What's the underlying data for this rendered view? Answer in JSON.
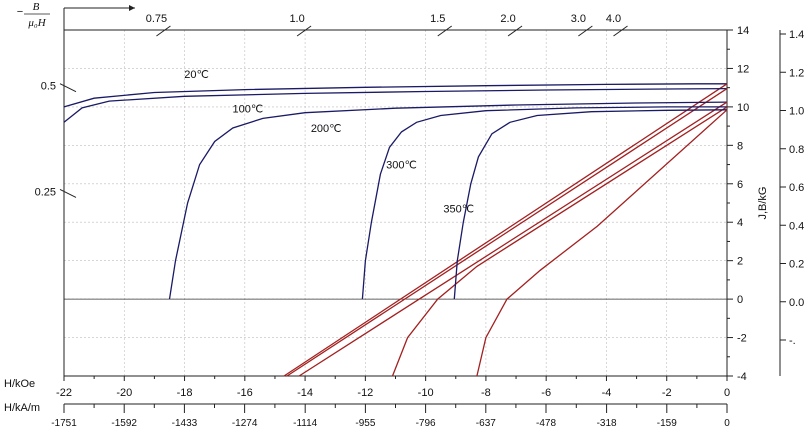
{
  "chart_data": {
    "type": "line",
    "x_axis_label": "H/kOe",
    "x_axis_ticks": [
      "-22",
      "-20",
      "-18",
      "-16",
      "-14",
      "-12",
      "-10",
      "-8",
      "-6",
      "-4",
      "-2",
      "0"
    ],
    "x_range": [
      -22,
      0
    ],
    "x2_axis_label": "H/kA/m",
    "x2_axis_ticks": [
      "-1751",
      "-1592",
      "-1433",
      "-1274",
      "-1114",
      "-955",
      "-796",
      "-637",
      "-478",
      "-318",
      "-159",
      "0"
    ],
    "y_axis_label": "J,B/kG",
    "y_axis_ticks": [
      "-4",
      "-2",
      "0",
      "2",
      "4",
      "6",
      "8",
      "10",
      "12",
      "14"
    ],
    "y_range": [
      -4,
      14
    ],
    "right_axis_ticks": [
      "1.4",
      "1.2",
      "1.0",
      "0.8",
      "0.6",
      "0.4",
      "0.2",
      "0.0",
      "-."
    ],
    "permeance_label": "−B/(μ0H)",
    "permeance_ticks": [
      {
        "label": "0.75",
        "slope": 0.75
      },
      {
        "label": "1.0",
        "slope": 1.0
      },
      {
        "label": "1.5",
        "slope": 1.5
      },
      {
        "label": "2.0",
        "slope": 2.0
      },
      {
        "label": "3.0",
        "slope": 3.0
      },
      {
        "label": "4.0",
        "slope": 4.0
      }
    ],
    "left_permeance_ticks": [
      {
        "label": "0.5",
        "slope": 0.5
      },
      {
        "label": "0.25",
        "slope": 0.25
      }
    ],
    "series": [
      {
        "name": "20℃",
        "color": "#1a1a66",
        "J": [
          [
            -22,
            10.0
          ],
          [
            -21,
            10.45
          ],
          [
            -19,
            10.75
          ],
          [
            -16,
            10.9
          ],
          [
            -12,
            11.02
          ],
          [
            -8,
            11.1
          ],
          [
            -4,
            11.17
          ],
          [
            -1,
            11.2
          ],
          [
            0,
            11.2
          ]
        ],
        "B": [
          [
            -14.7,
            -4
          ],
          [
            0,
            11.2
          ]
        ]
      },
      {
        "name": "100℃",
        "color": "#1a1a66",
        "J": [
          [
            -22,
            9.2
          ],
          [
            -21.4,
            9.95
          ],
          [
            -20.5,
            10.3
          ],
          [
            -18,
            10.55
          ],
          [
            -14,
            10.7
          ],
          [
            -10,
            10.8
          ],
          [
            -6,
            10.88
          ],
          [
            -2,
            10.93
          ],
          [
            0,
            10.95
          ]
        ],
        "B": [
          [
            -14.6,
            -4
          ],
          [
            0,
            10.95
          ]
        ]
      },
      {
        "name": "200℃",
        "color": "#1a1a66",
        "J": [
          [
            -18.5,
            0
          ],
          [
            -18.3,
            2
          ],
          [
            -17.9,
            5
          ],
          [
            -17.5,
            7
          ],
          [
            -17.0,
            8.2
          ],
          [
            -16.4,
            8.9
          ],
          [
            -15.4,
            9.4
          ],
          [
            -14,
            9.7
          ],
          [
            -11,
            9.93
          ],
          [
            -7,
            10.1
          ],
          [
            -3,
            10.2
          ],
          [
            0,
            10.25
          ]
        ],
        "B": [
          [
            -14.2,
            -4
          ],
          [
            0,
            10.25
          ]
        ]
      },
      {
        "name": "300℃",
        "color": "#1a1a66",
        "J": [
          [
            -12.1,
            0
          ],
          [
            -12.0,
            2
          ],
          [
            -11.8,
            4
          ],
          [
            -11.5,
            6.5
          ],
          [
            -11.2,
            7.9
          ],
          [
            -10.8,
            8.7
          ],
          [
            -10.3,
            9.2
          ],
          [
            -9.5,
            9.55
          ],
          [
            -8,
            9.8
          ],
          [
            -5,
            9.95
          ],
          [
            -2,
            10.0
          ],
          [
            0,
            10.0
          ]
        ],
        "B": [
          [
            -11.1,
            -4
          ],
          [
            -10.6,
            -2
          ],
          [
            -9.6,
            0
          ],
          [
            -8.3,
            1.7
          ],
          [
            0,
            10.0
          ]
        ]
      },
      {
        "name": "350℃",
        "color": "#1a1a66",
        "J": [
          [
            -9.05,
            0
          ],
          [
            -8.95,
            2
          ],
          [
            -8.75,
            4
          ],
          [
            -8.5,
            6
          ],
          [
            -8.25,
            7.4
          ],
          [
            -7.8,
            8.6
          ],
          [
            -7.2,
            9.2
          ],
          [
            -6.3,
            9.55
          ],
          [
            -4.5,
            9.75
          ],
          [
            -2,
            9.82
          ],
          [
            0,
            9.85
          ]
        ],
        "B": [
          [
            -8.3,
            -4
          ],
          [
            -8.0,
            -2
          ],
          [
            -7.3,
            0
          ],
          [
            -6.2,
            1.5
          ],
          [
            -4.3,
            3.8
          ],
          [
            0,
            9.85
          ]
        ]
      }
    ],
    "series_label_positions_data": [
      {
        "name": "20℃",
        "x": -17.6,
        "y": 11.5
      },
      {
        "name": "100℃",
        "x": -15.9,
        "y": 9.7
      },
      {
        "name": "200℃",
        "x": -13.3,
        "y": 8.7
      },
      {
        "name": "300℃",
        "x": -10.8,
        "y": 6.8
      },
      {
        "name": "350℃",
        "x": -8.9,
        "y": 4.5
      }
    ],
    "grid": true,
    "zero_line": true
  },
  "colors": {
    "J_curves": "#1a1a66",
    "B_curves": "#a32020",
    "grid": "#bdbdbd"
  }
}
